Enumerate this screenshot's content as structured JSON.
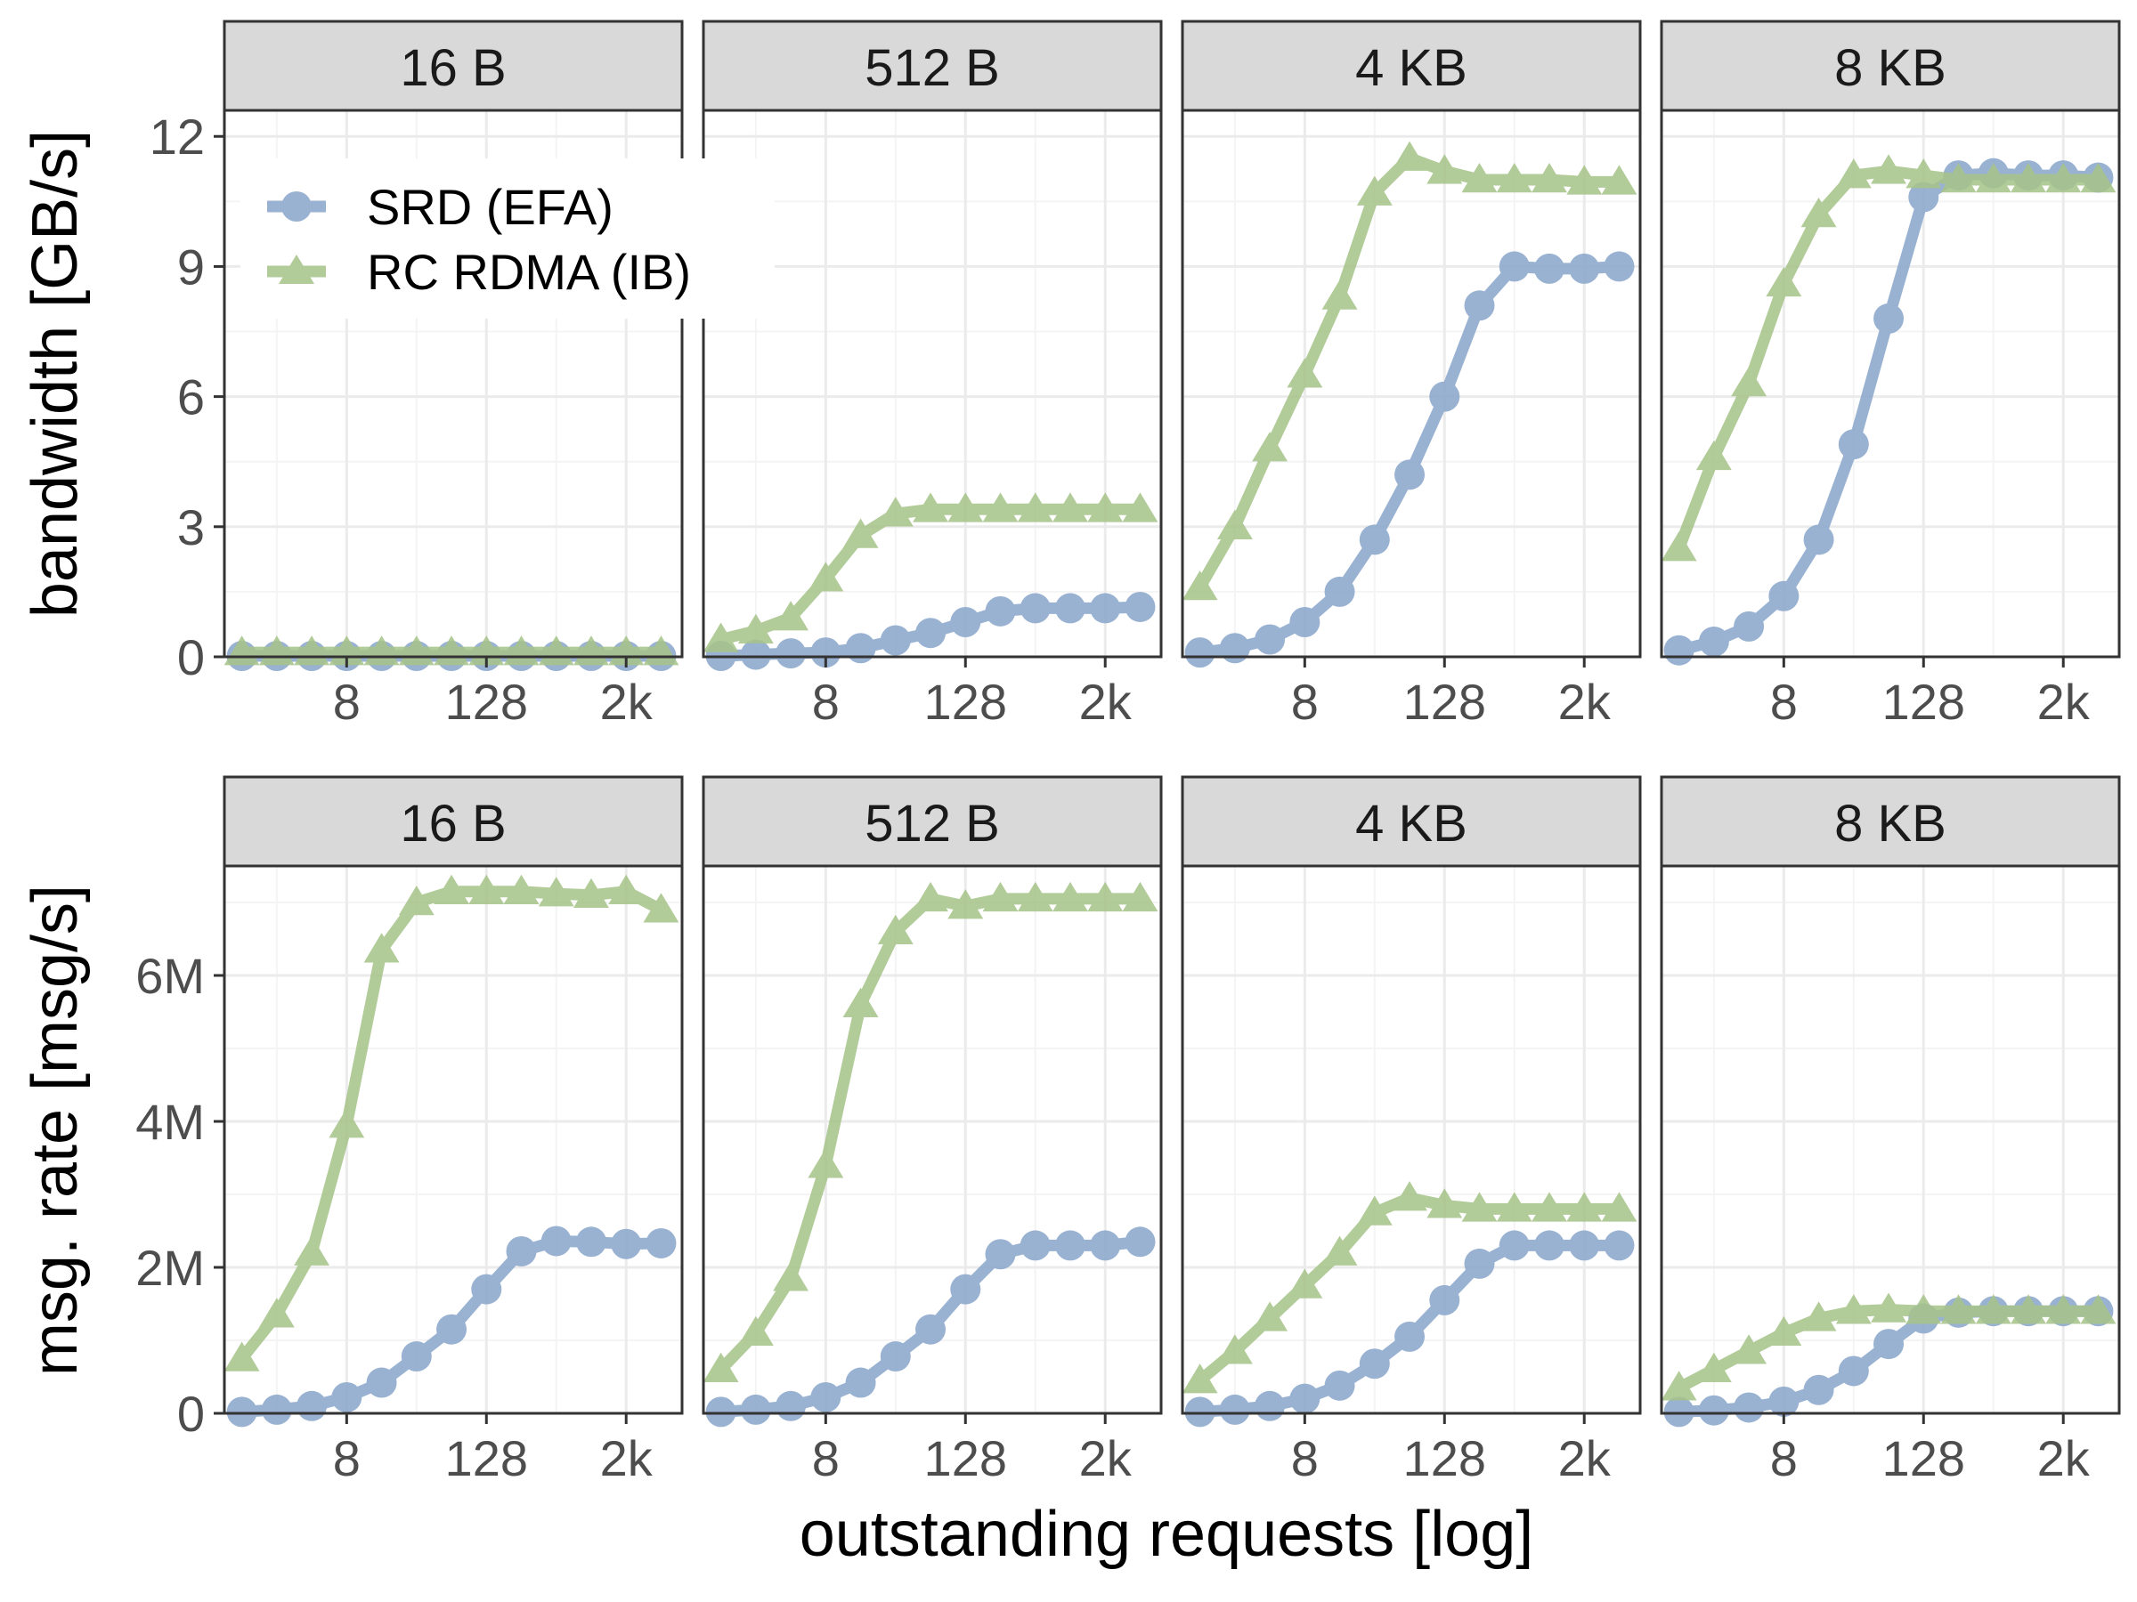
{
  "colors": {
    "srd": "#8ca8cc",
    "rc": "#a7c48b",
    "strip_bg": "#d9d9d9",
    "grid_major": "#ebebeb",
    "grid_minor": "#f4f4f4",
    "panel_border": "#333333"
  },
  "axes": {
    "x_title": "outstanding requests [log]",
    "x_ticks": [
      "8",
      "128",
      "2k"
    ],
    "top_y_title": "bandwidth [GB/s]",
    "top_y_ticks": [
      "0",
      "3",
      "6",
      "9",
      "12"
    ],
    "bottom_y_title": "msg. rate [msg/s]",
    "bottom_y_ticks": [
      "0",
      "2M",
      "4M",
      "6M"
    ]
  },
  "legend": {
    "items": [
      {
        "label": "SRD (EFA)",
        "marker": "circle"
      },
      {
        "label": "RC RDMA (IB)",
        "marker": "triangle"
      }
    ]
  },
  "chart_data": [
    {
      "type": "line",
      "facet": "16 B",
      "metric": "bandwidth",
      "xlabel": "outstanding requests [log]",
      "ylabel": "bandwidth [GB/s]",
      "x_scale": "log2",
      "x": [
        1,
        2,
        4,
        8,
        16,
        32,
        64,
        128,
        256,
        512,
        1024,
        2048,
        4096
      ],
      "ylim": [
        0,
        12.6
      ],
      "series": [
        {
          "name": "SRD (EFA)",
          "values": [
            0.02,
            0.02,
            0.02,
            0.02,
            0.02,
            0.02,
            0.02,
            0.02,
            0.02,
            0.02,
            0.02,
            0.02,
            0.02
          ]
        },
        {
          "name": "RC RDMA (IB)",
          "values": [
            0.1,
            0.1,
            0.1,
            0.1,
            0.1,
            0.1,
            0.1,
            0.1,
            0.1,
            0.1,
            0.1,
            0.1,
            0.1
          ]
        }
      ]
    },
    {
      "type": "line",
      "facet": "512 B",
      "metric": "bandwidth",
      "xlabel": "outstanding requests [log]",
      "ylabel": "bandwidth [GB/s]",
      "x_scale": "log2",
      "x": [
        1,
        2,
        4,
        8,
        16,
        32,
        64,
        128,
        256,
        512,
        1024,
        2048,
        4096
      ],
      "ylim": [
        0,
        12.6
      ],
      "series": [
        {
          "name": "SRD (EFA)",
          "values": [
            0.02,
            0.05,
            0.08,
            0.1,
            0.2,
            0.38,
            0.55,
            0.8,
            1.05,
            1.12,
            1.12,
            1.12,
            1.15
          ]
        },
        {
          "name": "RC RDMA (IB)",
          "values": [
            0.4,
            0.6,
            0.9,
            1.8,
            2.8,
            3.3,
            3.4,
            3.4,
            3.4,
            3.4,
            3.4,
            3.4,
            3.4
          ]
        }
      ]
    },
    {
      "type": "line",
      "facet": "4 KB",
      "metric": "bandwidth",
      "xlabel": "outstanding requests [log]",
      "ylabel": "bandwidth [GB/s]",
      "x_scale": "log2",
      "x": [
        1,
        2,
        4,
        8,
        16,
        32,
        64,
        128,
        256,
        512,
        1024,
        2048,
        4096
      ],
      "ylim": [
        0,
        12.6
      ],
      "series": [
        {
          "name": "SRD (EFA)",
          "values": [
            0.1,
            0.2,
            0.4,
            0.8,
            1.5,
            2.7,
            4.2,
            6.0,
            8.1,
            9.0,
            8.95,
            8.95,
            9.0
          ]
        },
        {
          "name": "RC RDMA (IB)",
          "values": [
            1.6,
            3.0,
            4.8,
            6.5,
            8.3,
            10.7,
            11.5,
            11.2,
            11.0,
            11.0,
            11.0,
            10.95,
            10.95
          ]
        }
      ]
    },
    {
      "type": "line",
      "facet": "8 KB",
      "metric": "bandwidth",
      "xlabel": "outstanding requests [log]",
      "ylabel": "bandwidth [GB/s]",
      "x_scale": "log2",
      "x": [
        1,
        2,
        4,
        8,
        16,
        32,
        64,
        128,
        256,
        512,
        1024,
        2048,
        4096
      ],
      "ylim": [
        0,
        12.6
      ],
      "series": [
        {
          "name": "SRD (EFA)",
          "values": [
            0.15,
            0.35,
            0.7,
            1.4,
            2.7,
            4.9,
            7.8,
            10.6,
            11.1,
            11.15,
            11.1,
            11.1,
            11.05
          ]
        },
        {
          "name": "RC RDMA (IB)",
          "values": [
            2.5,
            4.6,
            6.3,
            8.6,
            10.2,
            11.1,
            11.2,
            11.1,
            11.0,
            11.0,
            11.0,
            11.0,
            11.0
          ]
        }
      ]
    },
    {
      "type": "line",
      "facet": "16 B",
      "metric": "msg. rate",
      "xlabel": "outstanding requests [log]",
      "ylabel": "msg. rate [msg/s]",
      "x_scale": "log2",
      "x": [
        1,
        2,
        4,
        8,
        16,
        32,
        64,
        128,
        256,
        512,
        1024,
        2048,
        4096
      ],
      "ylim": [
        0,
        7.5
      ],
      "y_unit": "M",
      "series": [
        {
          "name": "SRD (EFA)",
          "values": [
            0.02,
            0.05,
            0.1,
            0.22,
            0.42,
            0.78,
            1.15,
            1.7,
            2.22,
            2.36,
            2.35,
            2.32,
            2.33
          ]
        },
        {
          "name": "RC RDMA (IB)",
          "values": [
            0.75,
            1.35,
            2.2,
            3.95,
            6.35,
            7.0,
            7.15,
            7.15,
            7.15,
            7.12,
            7.1,
            7.15,
            6.9
          ]
        }
      ]
    },
    {
      "type": "line",
      "facet": "512 B",
      "metric": "msg. rate",
      "xlabel": "outstanding requests [log]",
      "ylabel": "msg. rate [msg/s]",
      "x_scale": "log2",
      "x": [
        1,
        2,
        4,
        8,
        16,
        32,
        64,
        128,
        256,
        512,
        1024,
        2048,
        4096
      ],
      "ylim": [
        0,
        7.5
      ],
      "y_unit": "M",
      "series": [
        {
          "name": "SRD (EFA)",
          "values": [
            0.02,
            0.05,
            0.1,
            0.22,
            0.42,
            0.78,
            1.15,
            1.7,
            2.18,
            2.3,
            2.3,
            2.3,
            2.35
          ]
        },
        {
          "name": "RC RDMA (IB)",
          "values": [
            0.6,
            1.1,
            1.85,
            3.4,
            5.6,
            6.6,
            7.05,
            6.95,
            7.05,
            7.05,
            7.05,
            7.05,
            7.05
          ]
        }
      ]
    },
    {
      "type": "line",
      "facet": "4 KB",
      "metric": "msg. rate",
      "xlabel": "outstanding requests [log]",
      "ylabel": "msg. rate [msg/s]",
      "x_scale": "log2",
      "x": [
        1,
        2,
        4,
        8,
        16,
        32,
        64,
        128,
        256,
        512,
        1024,
        2048,
        4096
      ],
      "ylim": [
        0,
        7.5
      ],
      "y_unit": "M",
      "series": [
        {
          "name": "SRD (EFA)",
          "values": [
            0.02,
            0.05,
            0.1,
            0.2,
            0.38,
            0.68,
            1.05,
            1.55,
            2.05,
            2.3,
            2.3,
            2.3,
            2.3
          ]
        },
        {
          "name": "RC RDMA (IB)",
          "values": [
            0.45,
            0.85,
            1.3,
            1.75,
            2.2,
            2.75,
            2.95,
            2.85,
            2.8,
            2.8,
            2.8,
            2.8,
            2.8
          ]
        }
      ]
    },
    {
      "type": "line",
      "facet": "8 KB",
      "metric": "msg. rate",
      "xlabel": "outstanding requests [log]",
      "ylabel": "msg. rate [msg/s]",
      "x_scale": "log2",
      "x": [
        1,
        2,
        4,
        8,
        16,
        32,
        64,
        128,
        256,
        512,
        1024,
        2048,
        4096
      ],
      "ylim": [
        0,
        7.5
      ],
      "y_unit": "M",
      "series": [
        {
          "name": "SRD (EFA)",
          "values": [
            0.02,
            0.04,
            0.08,
            0.16,
            0.32,
            0.58,
            0.95,
            1.3,
            1.38,
            1.4,
            1.4,
            1.4,
            1.4
          ]
        },
        {
          "name": "RC RDMA (IB)",
          "values": [
            0.35,
            0.6,
            0.85,
            1.1,
            1.3,
            1.4,
            1.42,
            1.4,
            1.4,
            1.4,
            1.4,
            1.4,
            1.4
          ]
        }
      ]
    }
  ]
}
